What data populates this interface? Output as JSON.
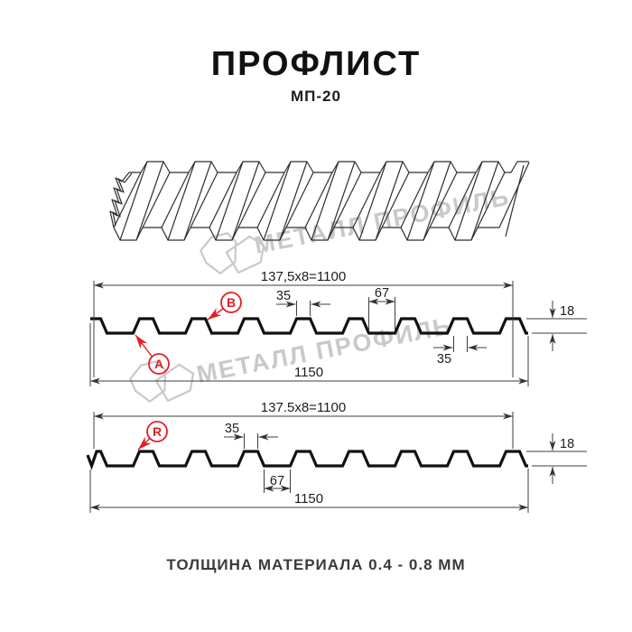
{
  "page": {
    "title": "ПРОФЛИСТ",
    "subtitle": "МП-20",
    "footer": "ТОЛЩИНА МАТЕРИАЛА 0.4 - 0.8 ММ"
  },
  "watermark": {
    "text": "МЕТАЛЛ ПРОФИЛЬ"
  },
  "colors": {
    "accent_red": "#e31e24",
    "line": "#111111",
    "watermark": "#c9c9c9"
  },
  "profile_front": {
    "module_label": "137,5x8=1100",
    "crest_width": "35",
    "valley_width": "67",
    "height_label": "18",
    "crest_width_bottom": "35",
    "overall_width": "1150",
    "label_a": "A",
    "label_b": "B"
  },
  "profile_back": {
    "module_label": "137.5x8=1100",
    "crest_width": "35",
    "valley_width": "67",
    "height_label": "18",
    "overall_width": "1150",
    "label_r": "R"
  }
}
